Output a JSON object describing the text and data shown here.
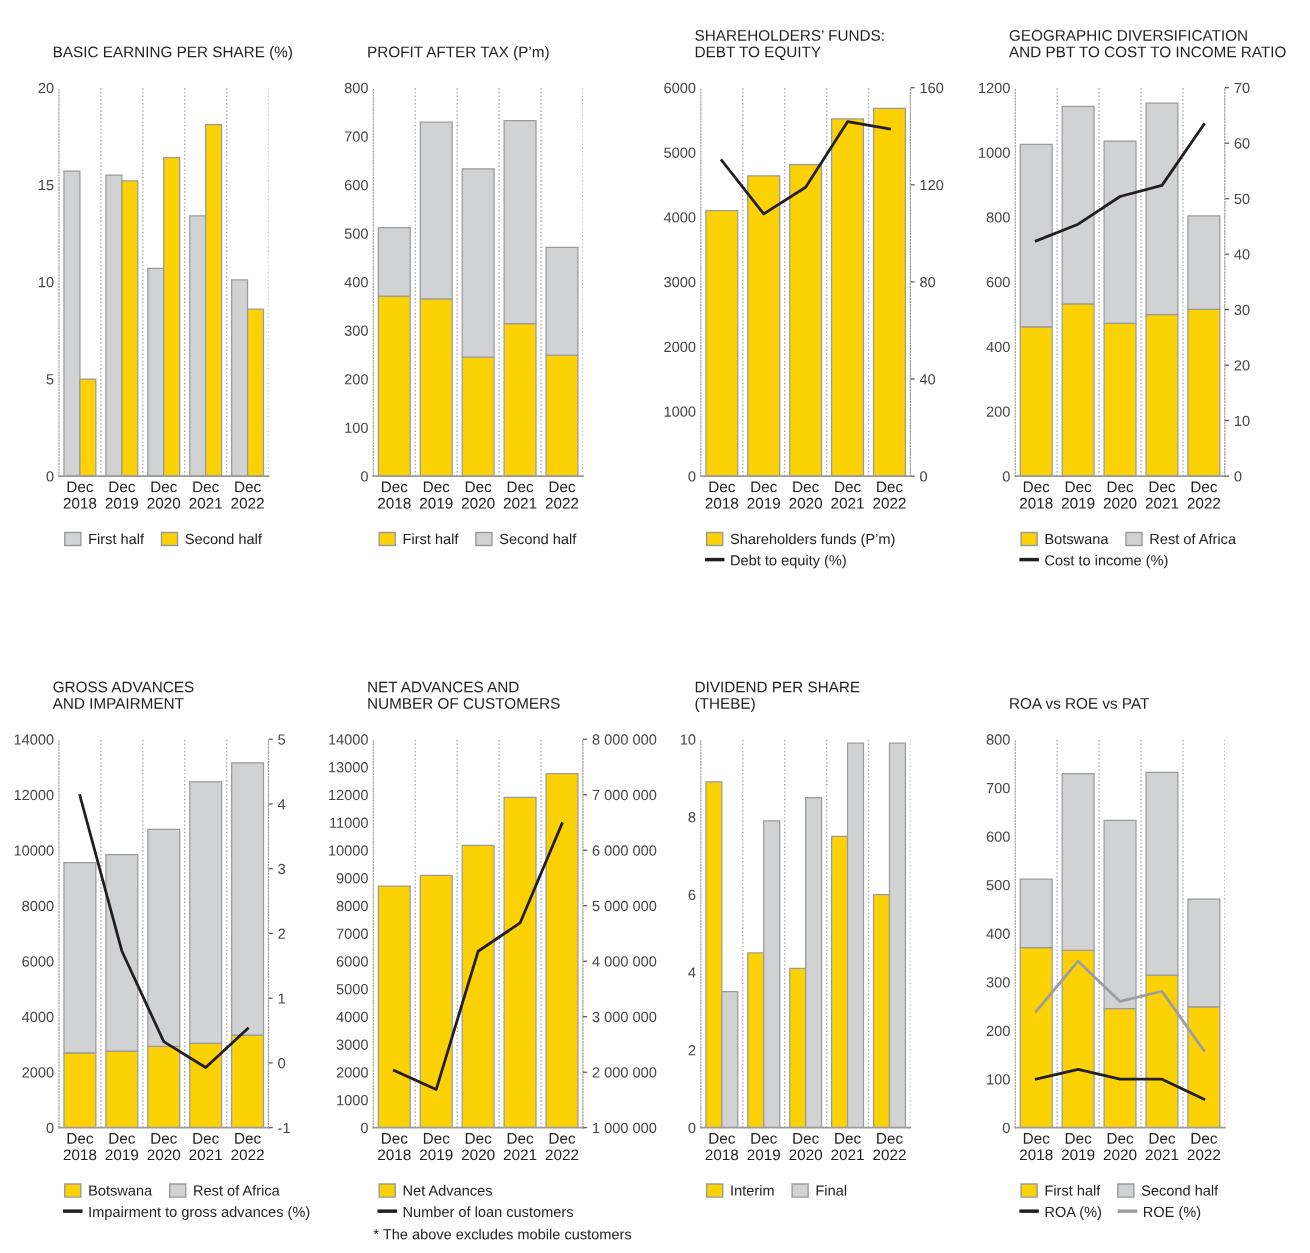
{
  "chart_data": [
    {
      "type": "bar",
      "title": "BASIC EARNING PER SHARE (%)",
      "categories": [
        "Dec\n2018",
        "Dec\n2019",
        "Dec\n2020",
        "Dec\n2021",
        "Dec\n2022"
      ],
      "ylim": [
        0,
        20
      ],
      "yticks": [
        0,
        5,
        10,
        15,
        20
      ],
      "grid": "x",
      "legend": "bottom",
      "series": [
        {
          "name": "First half",
          "color": "#d1d2d4",
          "values": [
            15.7,
            15.5,
            10.7,
            13.4,
            10.1
          ]
        },
        {
          "name": "Second half",
          "color": "#fcd205",
          "values": [
            5.0,
            15.2,
            16.4,
            18.1,
            8.6
          ]
        }
      ]
    },
    {
      "type": "bar",
      "title": "PROFIT AFTER TAX (P’m)",
      "categories": [
        "Dec\n2018",
        "Dec\n2019",
        "Dec\n2020",
        "Dec\n2021",
        "Dec\n2022"
      ],
      "stacked": true,
      "ylim": [
        0,
        800
      ],
      "yticks": [
        0,
        100,
        200,
        300,
        400,
        500,
        600,
        700,
        800
      ],
      "grid": "x",
      "legend": "bottom",
      "series": [
        {
          "name": "First half",
          "color": "#fcd205",
          "values": [
            371,
            365,
            245,
            314,
            249
          ]
        },
        {
          "name": "Second half",
          "color": "#d1d2d4",
          "values": [
            141,
            364,
            388,
            418,
            222
          ]
        }
      ]
    },
    {
      "type": "bar",
      "title": "SHAREHOLDERS’ FUNDS:\nDEBT TO EQUITY",
      "categories": [
        "Dec\n2018",
        "Dec\n2019",
        "Dec\n2020",
        "Dec\n2021",
        "Dec\n2022"
      ],
      "ylim": [
        0,
        6000
      ],
      "yticks": [
        0,
        1000,
        2000,
        3000,
        4000,
        5000,
        6000
      ],
      "y2lim": [
        0,
        160
      ],
      "y2ticks": [
        0,
        40,
        80,
        120,
        160
      ],
      "grid": "x",
      "legend": "bottom",
      "series": [
        {
          "name": "Shareholders funds (P’m)",
          "color": "#fcd205",
          "values": [
            4100,
            4640,
            4810,
            5520,
            5680
          ]
        },
        {
          "name": "Debt to equity (%)",
          "type": "line",
          "axis": "y2",
          "color": "#231f20",
          "values": [
            130,
            108,
            119,
            146,
            143
          ]
        }
      ]
    },
    {
      "type": "bar",
      "title": "GEOGRAPHIC DIVERSIFICATION\nAND PBT TO COST TO INCOME RATIO",
      "categories": [
        "Dec\n2018",
        "Dec\n2019",
        "Dec\n2020",
        "Dec\n2021",
        "Dec\n2022"
      ],
      "stacked": true,
      "ylim": [
        0,
        1200
      ],
      "yticks": [
        0,
        200,
        400,
        600,
        800,
        1000,
        1200
      ],
      "y2lim": [
        0,
        70
      ],
      "y2ticks": [
        0,
        10,
        20,
        30,
        40,
        50,
        60,
        70
      ],
      "grid": "x",
      "legend": "bottom",
      "series": [
        {
          "name": "Botswana",
          "color": "#fcd205",
          "values": [
            461,
            532,
            472,
            499,
            515
          ]
        },
        {
          "name": "Rest of Africa",
          "color": "#d1d2d4",
          "values": [
            564,
            610,
            563,
            653,
            289
          ]
        },
        {
          "name": "Cost to income (%)",
          "type": "line",
          "axis": "y2",
          "color": "#231f20",
          "values": [
            42.4,
            45.4,
            50.4,
            52.4,
            63.4
          ]
        }
      ]
    },
    {
      "type": "bar",
      "title": "GROSS ADVANCES\nAND IMPAIRMENT",
      "categories": [
        "Dec\n2018",
        "Dec\n2019",
        "Dec\n2020",
        "Dec\n2021",
        "Dec\n2022"
      ],
      "stacked": true,
      "ylim": [
        0,
        14000
      ],
      "yticks": [
        0,
        2000,
        4000,
        6000,
        8000,
        10000,
        12000,
        14000
      ],
      "y2lim": [
        -1,
        5
      ],
      "y2ticks": [
        -1,
        0,
        1,
        2,
        3,
        4,
        5
      ],
      "grid": "x",
      "legend": "bottom",
      "series": [
        {
          "name": "Botswana",
          "color": "#fcd205",
          "values": [
            2700,
            2760,
            2930,
            3040,
            3340
          ]
        },
        {
          "name": "Rest of Africa",
          "color": "#d1d2d4",
          "values": [
            6850,
            7080,
            7820,
            9420,
            9810
          ]
        },
        {
          "name": "Impairment to gross advances (%)",
          "type": "line",
          "axis": "y2",
          "color": "#231f20",
          "values": [
            4.13,
            1.73,
            0.33,
            -0.07,
            0.53
          ]
        }
      ]
    },
    {
      "type": "bar",
      "title": "NET ADVANCES AND\nNUMBER OF CUSTOMERS",
      "categories": [
        "Dec\n2018",
        "Dec\n2019",
        "Dec\n2020",
        "Dec\n2021",
        "Dec\n2022"
      ],
      "ylim": [
        0,
        14000
      ],
      "yticks": [
        0,
        1000,
        2000,
        3000,
        4000,
        5000,
        6000,
        7000,
        8000,
        9000,
        10000,
        11000,
        12000,
        13000,
        14000
      ],
      "y2lim": [
        1000000,
        8000000
      ],
      "y2ticks": [
        {
          "value": 1000000,
          "label": "1 000 000"
        },
        {
          "value": 2000000,
          "label": "2 000 000"
        },
        {
          "value": 3000000,
          "label": "3 000 000"
        },
        {
          "value": 4000000,
          "label": "4 000 000"
        },
        {
          "value": 5000000,
          "label": "5 000 000"
        },
        {
          "value": 6000000,
          "label": "6 000 000"
        },
        {
          "value": 7000000,
          "label": "7 000 000"
        },
        {
          "value": 8000000,
          "label": "8 000 000"
        }
      ],
      "grid": "x",
      "legend": "bottom",
      "annotations": [
        "* The above excludes mobile customers"
      ],
      "series": [
        {
          "name": "Net Advances",
          "color": "#fcd205",
          "values": [
            8710,
            9090,
            10180,
            11910,
            12760
          ]
        },
        {
          "name": "Number of loan customers",
          "type": "line",
          "axis": "y2",
          "color": "#231f20",
          "values": [
            2030000,
            1690000,
            4180000,
            4690000,
            6480000
          ]
        }
      ]
    },
    {
      "type": "bar",
      "title": "DIVIDEND PER SHARE\n(THEBE)",
      "categories": [
        "Dec\n2018",
        "Dec\n2019",
        "Dec\n2020",
        "Dec\n2021",
        "Dec\n2022"
      ],
      "ylim": [
        0,
        10
      ],
      "yticks": [
        0,
        2,
        4,
        6,
        8,
        10
      ],
      "grid": "x",
      "legend": "bottom",
      "series": [
        {
          "name": "Interim",
          "color": "#fcd205",
          "values": [
            8.9,
            4.5,
            4.1,
            7.5,
            6.0
          ]
        },
        {
          "name": "Final",
          "color": "#d1d2d4",
          "values": [
            3.5,
            7.9,
            8.5,
            9.9,
            9.9
          ]
        }
      ]
    },
    {
      "type": "bar",
      "title": "ROA vs ROE vs PAT",
      "categories": [
        "Dec\n2018",
        "Dec\n2019",
        "Dec\n2020",
        "Dec\n2021",
        "Dec\n2022"
      ],
      "stacked": true,
      "ylim": [
        0,
        800
      ],
      "yticks": [
        0,
        100,
        200,
        300,
        400,
        500,
        600,
        700,
        800
      ],
      "grid": "x",
      "legend": "bottom",
      "series": [
        {
          "name": "First half",
          "color": "#fcd205",
          "values": [
            371,
            365,
            245,
            314,
            249
          ]
        },
        {
          "name": "Second half",
          "color": "#d1d2d4",
          "values": [
            141,
            364,
            388,
            418,
            222
          ]
        },
        {
          "name": "ROA (%)",
          "type": "line",
          "color": "#231f20",
          "values": [
            100,
            120,
            100,
            100,
            59
          ]
        },
        {
          "name": "ROE (%)",
          "type": "line",
          "color": "#9d9d9d",
          "values": [
            240,
            343,
            260,
            281,
            159
          ]
        }
      ]
    }
  ]
}
